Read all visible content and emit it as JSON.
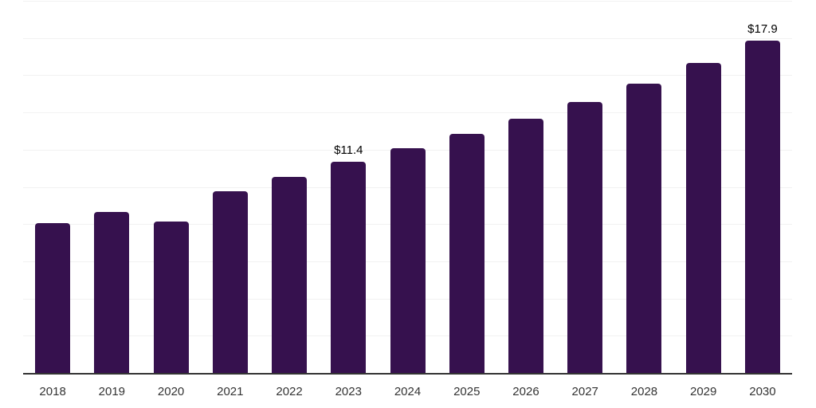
{
  "chart_data": {
    "type": "bar",
    "title": "",
    "xlabel": "",
    "ylabel": "",
    "categories": [
      "2018",
      "2019",
      "2020",
      "2021",
      "2022",
      "2023",
      "2024",
      "2025",
      "2026",
      "2027",
      "2028",
      "2029",
      "2030"
    ],
    "values": [
      8.1,
      8.7,
      8.2,
      9.8,
      10.6,
      11.4,
      12.1,
      12.9,
      13.7,
      14.6,
      15.6,
      16.7,
      17.9
    ],
    "bar_labels": [
      "",
      "",
      "",
      "",
      "",
      "$11.4",
      "",
      "",
      "",
      "",
      "",
      "",
      "$17.9"
    ],
    "ylim": [
      0,
      20
    ],
    "grid_step": 2,
    "grid_on": true,
    "legend_position": "none",
    "colors": {
      "bar": "#36114E",
      "gridline": "#f2f2f2",
      "axis_line": "#333333",
      "tick_label": "#333333",
      "data_label": "#000000",
      "background": "#ffffff"
    }
  }
}
